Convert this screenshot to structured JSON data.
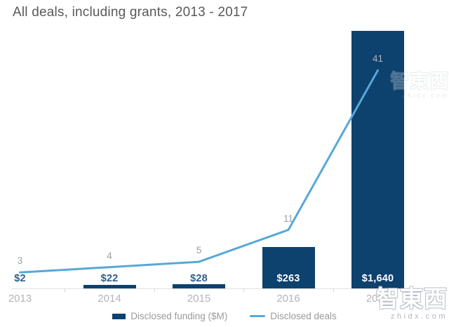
{
  "title": "All deals, including grants, 2013 - 2017",
  "legend": [
    {
      "label": "Disclosed funding ($M)",
      "swatch": "bar-swatch"
    },
    {
      "label": "Disclosed deals",
      "swatch": "line-swatch"
    }
  ],
  "watermark": {
    "cn": "智東西",
    "en": "zhidx.com"
  },
  "colors": {
    "bar": "#0d416e",
    "line": "#56a8d8",
    "funding_label_outside": "#2f5f90",
    "funding_label_inside": "#ffffff",
    "deals_label": "#9aa0a6",
    "deals_label_inside_bar": "#adb3bc",
    "axis_label": "#b4b4b4",
    "title_text": "#58595b"
  },
  "chart_data": {
    "type": "bar",
    "subtype": "bar+line combo",
    "title": "All deals, including grants, 2013 - 2017",
    "categories": [
      "2013",
      "2014",
      "2015",
      "2016",
      "2017"
    ],
    "series": [
      {
        "name": "Disclosed funding ($M)",
        "type": "bar",
        "values": [
          2,
          22,
          28,
          263,
          1640
        ],
        "labels": [
          "$2",
          "$22",
          "$28",
          "$263",
          "$1,640"
        ]
      },
      {
        "name": "Disclosed deals",
        "type": "line",
        "values": [
          3,
          4,
          5,
          11,
          41
        ],
        "labels": [
          "3",
          "4",
          "5",
          "11",
          "41"
        ]
      }
    ],
    "xlabel": "",
    "ylabel": "",
    "ylim_funding": [
      0,
      1840
    ],
    "ylim_deals": [
      0,
      46
    ],
    "grid": false,
    "legend_position": "bottom-center",
    "value_labels_shown": true
  }
}
